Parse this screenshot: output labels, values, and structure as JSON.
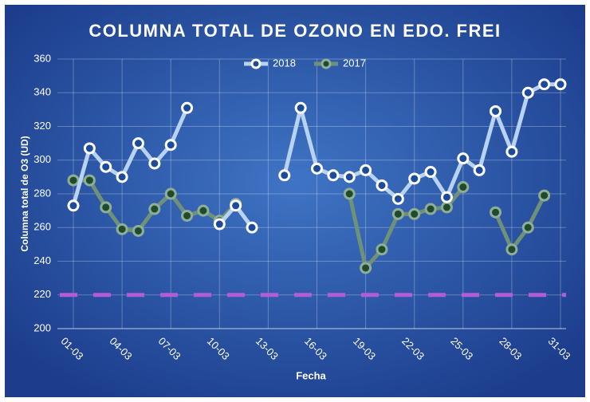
{
  "chart_data": {
    "type": "line",
    "title": "COLUMNA TOTAL DE OZONO EN EDO. FREI",
    "x_label": "Fecha",
    "y_label": "Columna total de O3 (UD)",
    "categories": [
      "01-03",
      null,
      null,
      "04-03",
      null,
      null,
      "07-03",
      null,
      null,
      "10-03",
      null,
      null,
      "13-03",
      null,
      null,
      "16-03",
      null,
      null,
      "19-03",
      null,
      null,
      "22-03",
      null,
      null,
      "25-03",
      null,
      null,
      "28-03",
      null,
      null,
      "31-03"
    ],
    "series": [
      {
        "name": "2018",
        "color": "#b8d2f2",
        "marker_color": "#ffffff",
        "values": [
          273,
          307,
          296,
          290,
          310,
          298,
          309,
          331,
          null,
          262,
          273,
          260,
          null,
          291,
          331,
          295,
          291,
          290,
          294,
          285,
          277,
          289,
          293,
          278,
          301,
          294,
          329,
          305,
          340,
          345,
          345
        ]
      },
      {
        "name": "2017",
        "color": "#6f9177",
        "marker_color": "#1f4a2c",
        "values": [
          288,
          288,
          272,
          259,
          258,
          271,
          280,
          267,
          270,
          264,
          274,
          null,
          null,
          null,
          null,
          null,
          null,
          280,
          236,
          247,
          268,
          268,
          271,
          272,
          284,
          null,
          269,
          247,
          260,
          279,
          null
        ]
      }
    ],
    "reference_line": {
      "value": 220,
      "color": "#b55bd6"
    },
    "ylim": [
      200,
      360
    ],
    "yticks": [
      200,
      220,
      240,
      260,
      280,
      300,
      320,
      340,
      360
    ],
    "grid": true,
    "legend": "top"
  }
}
